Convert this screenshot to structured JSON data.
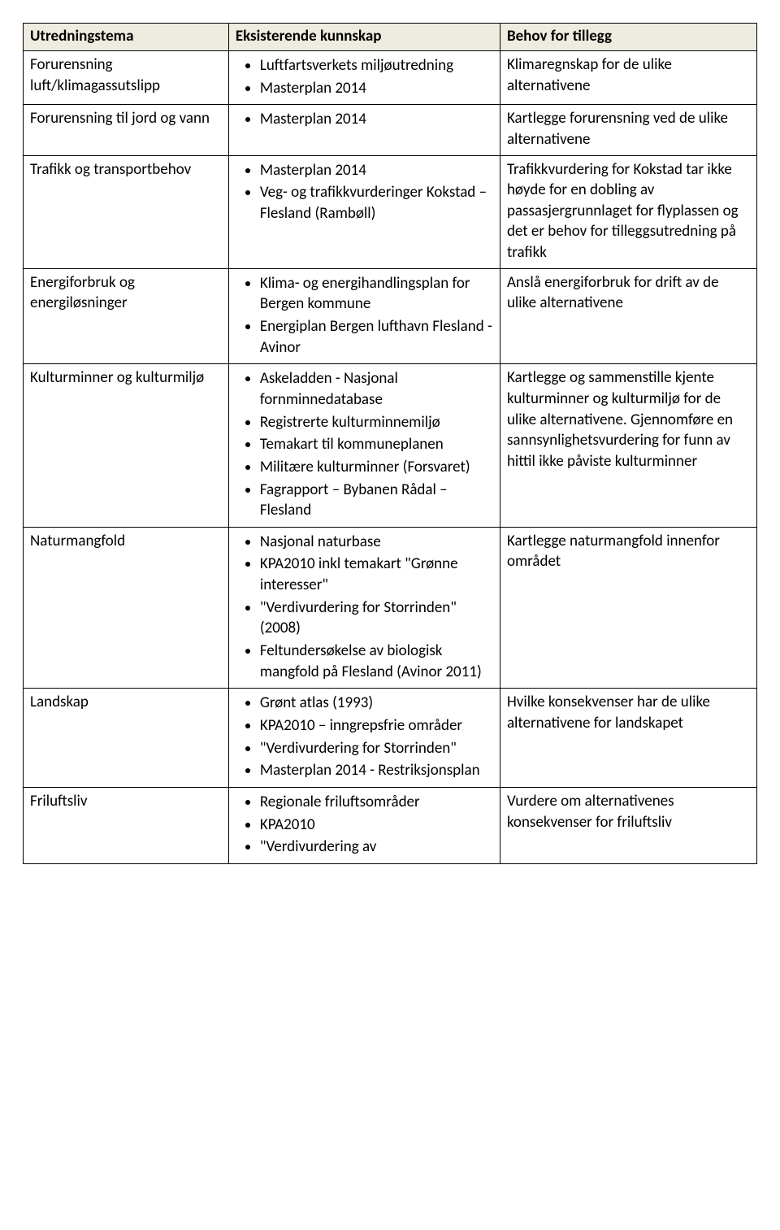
{
  "header": {
    "c1": "Utredningstema",
    "c2": "Eksisterende kunnskap",
    "c3": "Behov for tillegg"
  },
  "rows": [
    {
      "tema": "Forurensning luft/klimagassutslipp",
      "kunnskap": [
        "Luftfartsverkets miljøutredning",
        "Masterplan 2014"
      ],
      "behov": "Klimaregnskap for de ulike alternativene"
    },
    {
      "tema": "Forurensning til jord og vann",
      "kunnskap": [
        "Masterplan 2014"
      ],
      "behov": "Kartlegge forurensning ved de ulike alternativene"
    },
    {
      "tema": "Trafikk og transportbehov",
      "kunnskap": [
        "Masterplan 2014",
        "Veg- og trafikkvurderinger Kokstad – Flesland (Rambøll)"
      ],
      "behov": "Trafikkvurdering for Kokstad tar ikke høyde for en dobling av passasjergrunnlaget for flyplassen og det er behov for tilleggsutredning på trafikk"
    },
    {
      "tema": "Energiforbruk og energiløsninger",
      "kunnskap": [
        "Klima- og energihandlingsplan for Bergen kommune",
        "Energiplan Bergen lufthavn Flesland - Avinor"
      ],
      "behov": "Anslå energiforbruk for drift av de ulike alternativene"
    },
    {
      "tema": "Kulturminner og kulturmiljø",
      "kunnskap": [
        "Askeladden - Nasjonal fornminnedatabase",
        " Registrerte kulturminnemiljø",
        "Temakart til kommuneplanen",
        "Militære kulturminner (Forsvaret)",
        "Fagrapport – Bybanen Rådal – Flesland"
      ],
      "behov": "Kartlegge og sammenstille kjente kulturminner og kulturmiljø for de ulike alternativene. Gjennomføre en sannsynlighetsvurdering for funn av hittil ikke påviste kulturminner"
    },
    {
      "tema": "Naturmangfold",
      "kunnskap": [
        "Nasjonal naturbase",
        "KPA2010 inkl temakart \"Grønne interesser\"",
        "\"Verdivurdering for Storrinden\" (2008)",
        "Feltundersøkelse av biologisk mangfold på Flesland (Avinor 2011)"
      ],
      "behov": "Kartlegge naturmangfold innenfor området"
    },
    {
      "tema": "Landskap",
      "kunnskap": [
        "Grønt atlas (1993)",
        "KPA2010 – inngrepsfrie områder",
        "\"Verdivurdering for Storrinden\"",
        "Masterplan 2014 - Restriksjonsplan"
      ],
      "behov": "Hvilke konsekvenser har de ulike alternativene for landskapet"
    },
    {
      "tema": "Friluftsliv",
      "kunnskap": [
        "Regionale friluftsområder",
        "KPA2010",
        "\"Verdivurdering av"
      ],
      "behov": "Vurdere om alternativenes konsekvenser for friluftsliv"
    }
  ]
}
